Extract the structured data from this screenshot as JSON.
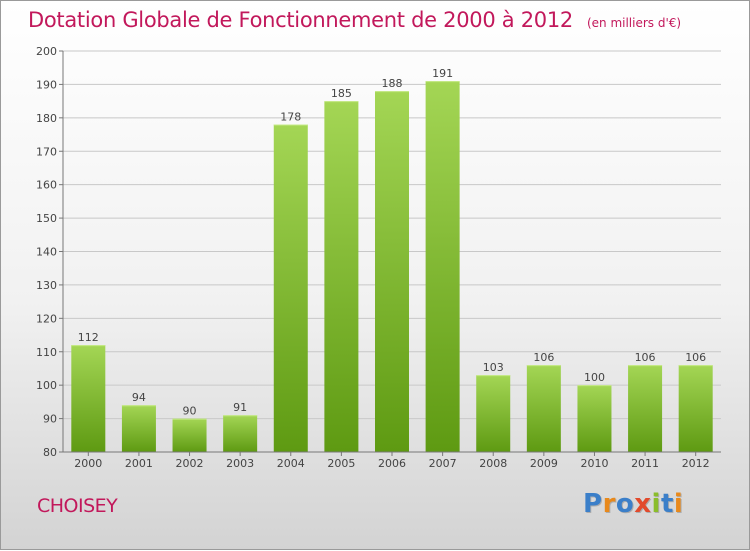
{
  "title": "Dotation Globale de Fonctionnement de 2000 à 2012",
  "unit_note": "(en milliers d'€)",
  "place": "CHOISEY",
  "logo": {
    "letters": [
      "P",
      "r",
      "o",
      "x",
      "i",
      "t",
      "i"
    ],
    "colors": [
      "#3b7fc9",
      "#e8891c",
      "#3b7fc9",
      "#e24a2c",
      "#8bbd2b",
      "#3b7fc9",
      "#e8891c"
    ]
  },
  "colors": {
    "title": "#c2185b",
    "bar_top": "#a4d655",
    "bar_bottom": "#5e9a12",
    "grid": "#c8c8c8"
  },
  "chart_data": {
    "type": "bar",
    "categories": [
      "2000",
      "2001",
      "2002",
      "2003",
      "2004",
      "2005",
      "2006",
      "2007",
      "2008",
      "2009",
      "2010",
      "2011",
      "2012"
    ],
    "values": [
      112,
      94,
      90,
      91,
      178,
      185,
      188,
      191,
      103,
      106,
      100,
      106,
      106
    ],
    "ylim": [
      80,
      200
    ],
    "yticks": [
      80,
      90,
      100,
      110,
      120,
      130,
      140,
      150,
      160,
      170,
      180,
      190,
      200
    ],
    "grid": true,
    "xlabel": "",
    "ylabel": ""
  }
}
